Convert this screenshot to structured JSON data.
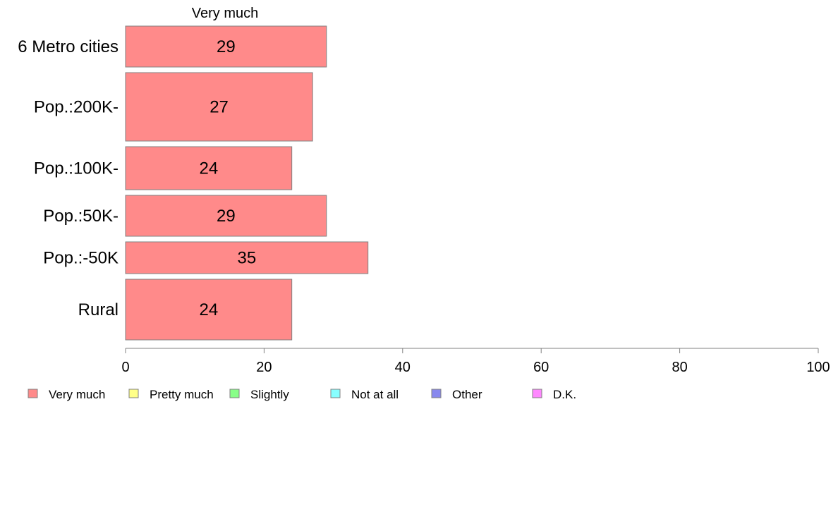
{
  "chart_data": {
    "type": "bar",
    "orientation": "horizontal",
    "column_title": "Very much",
    "categories": [
      "6 Metro cities",
      "Pop.:200K-",
      "Pop.:100K-",
      "Pop.:50K-",
      "Pop.:-50K",
      "Rural"
    ],
    "series": [
      {
        "name": "Very much",
        "values": [
          29,
          27,
          24,
          29,
          35,
          24
        ],
        "color": "#ff8a8a"
      }
    ],
    "data_labels": [
      "29",
      "27",
      "24",
      "29",
      "35",
      "24"
    ],
    "xlim": [
      0,
      100
    ],
    "xticks": [
      0,
      20,
      40,
      60,
      80,
      100
    ],
    "grid": false,
    "legend": {
      "placement": "bottom",
      "items": [
        {
          "label": "Very much",
          "color": "#ff8a8a"
        },
        {
          "label": "Pretty much",
          "color": "#ffff88"
        },
        {
          "label": "Slightly",
          "color": "#88ff88"
        },
        {
          "label": "Not at all",
          "color": "#88ffff"
        },
        {
          "label": "Other",
          "color": "#8888ee"
        },
        {
          "label": "D.K.",
          "color": "#ff88ff"
        }
      ]
    }
  }
}
